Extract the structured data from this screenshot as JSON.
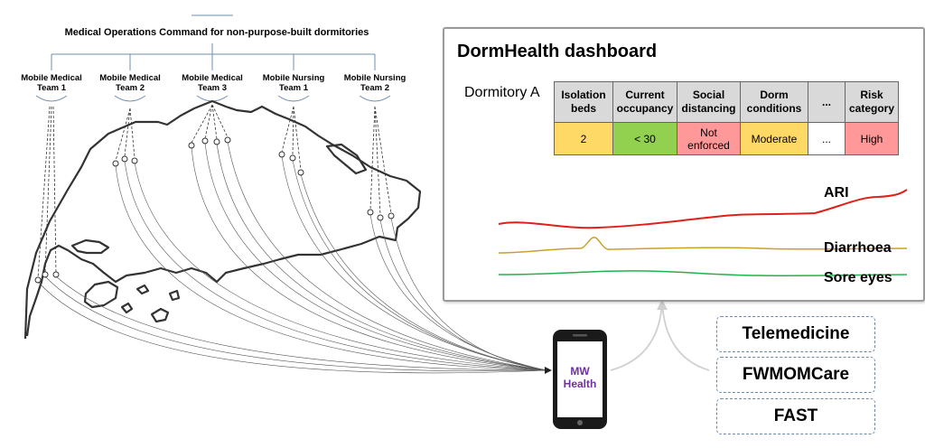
{
  "command": {
    "title": "Medical Operations Command for non-purpose-built dormitories",
    "teams": [
      {
        "line1": "Mobile Medical",
        "line2": "Team 1"
      },
      {
        "line1": "Mobile Medical",
        "line2": "Team 2"
      },
      {
        "line1": "Mobile Medical",
        "line2": "Team 3"
      },
      {
        "line1": "Mobile Nursing",
        "line2": "Team 1"
      },
      {
        "line1": "Mobile Nursing",
        "line2": "Team 2"
      }
    ]
  },
  "dashboard": {
    "title": "DormHealth dashboard",
    "dormitory": "Dormitory A",
    "headers": [
      {
        "line1": "Isolation",
        "line2": "beds"
      },
      {
        "line1": "Current",
        "line2": "occupancy"
      },
      {
        "line1": "Social",
        "line2": "distancing"
      },
      {
        "line1": "Dorm",
        "line2": "conditions"
      },
      {
        "line1": "...",
        "line2": ""
      },
      {
        "line1": "Risk",
        "line2": "category"
      }
    ],
    "values": [
      {
        "line1": "2",
        "line2": "",
        "color": "#ffd966"
      },
      {
        "line1": "< 30",
        "line2": "",
        "color": "#92d050"
      },
      {
        "line1": "Not",
        "line2": "enforced",
        "color": "#ff9999"
      },
      {
        "line1": "Moderate",
        "line2": "",
        "color": "#ffd966"
      },
      {
        "line1": "...",
        "line2": "",
        "color": "#ffffff"
      },
      {
        "line1": "High",
        "line2": "",
        "color": "#ff9999"
      }
    ],
    "series": [
      {
        "label": "ARI",
        "color": "#e0201b"
      },
      {
        "label": "Diarrhoea",
        "color": "#c9a227"
      },
      {
        "label": "Sore eyes",
        "color": "#22b24c"
      }
    ]
  },
  "phone": {
    "line1": "MW",
    "line2": "Health"
  },
  "services": [
    "Telemedicine",
    "FWMOMCare",
    "FAST"
  ]
}
